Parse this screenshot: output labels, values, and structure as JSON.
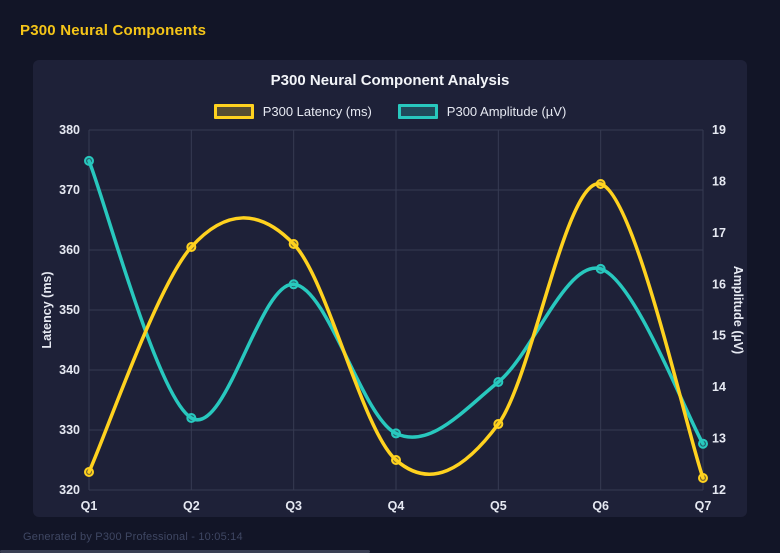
{
  "page": {
    "header_title": "P300 Neural Components",
    "footer_text": "Generated by P300 Professional - 10:05:14",
    "colors": {
      "page_bg": "#121527",
      "panel_bg": "#1E2138",
      "accent": "#F5C518",
      "grid": "#363B52",
      "tick_text": "#E6E9F2",
      "muted_text": "#3F4763"
    }
  },
  "chart_data": {
    "type": "line",
    "title": "P300 Neural Component Analysis",
    "categories": [
      "Q1",
      "Q2",
      "Q3",
      "Q4",
      "Q5",
      "Q6",
      "Q7"
    ],
    "series": [
      {
        "name": "P300 Latency (ms)",
        "axis": "left",
        "color": "#FFD21F",
        "values": [
          323,
          360.5,
          361,
          325,
          331,
          371,
          322
        ]
      },
      {
        "name": "P300 Amplitude (µV)",
        "axis": "right",
        "color": "#28C8BE",
        "values": [
          18.4,
          13.4,
          16.0,
          13.1,
          14.1,
          16.3,
          12.9
        ]
      }
    ],
    "left_axis": {
      "label": "Latency (ms)",
      "min": 320,
      "max": 380,
      "tick_step": 10
    },
    "right_axis": {
      "label": "Amplitude (µV)",
      "min": 12,
      "max": 19,
      "tick_step": 1
    },
    "grid": true,
    "smooth": true,
    "legend_position": "top"
  }
}
